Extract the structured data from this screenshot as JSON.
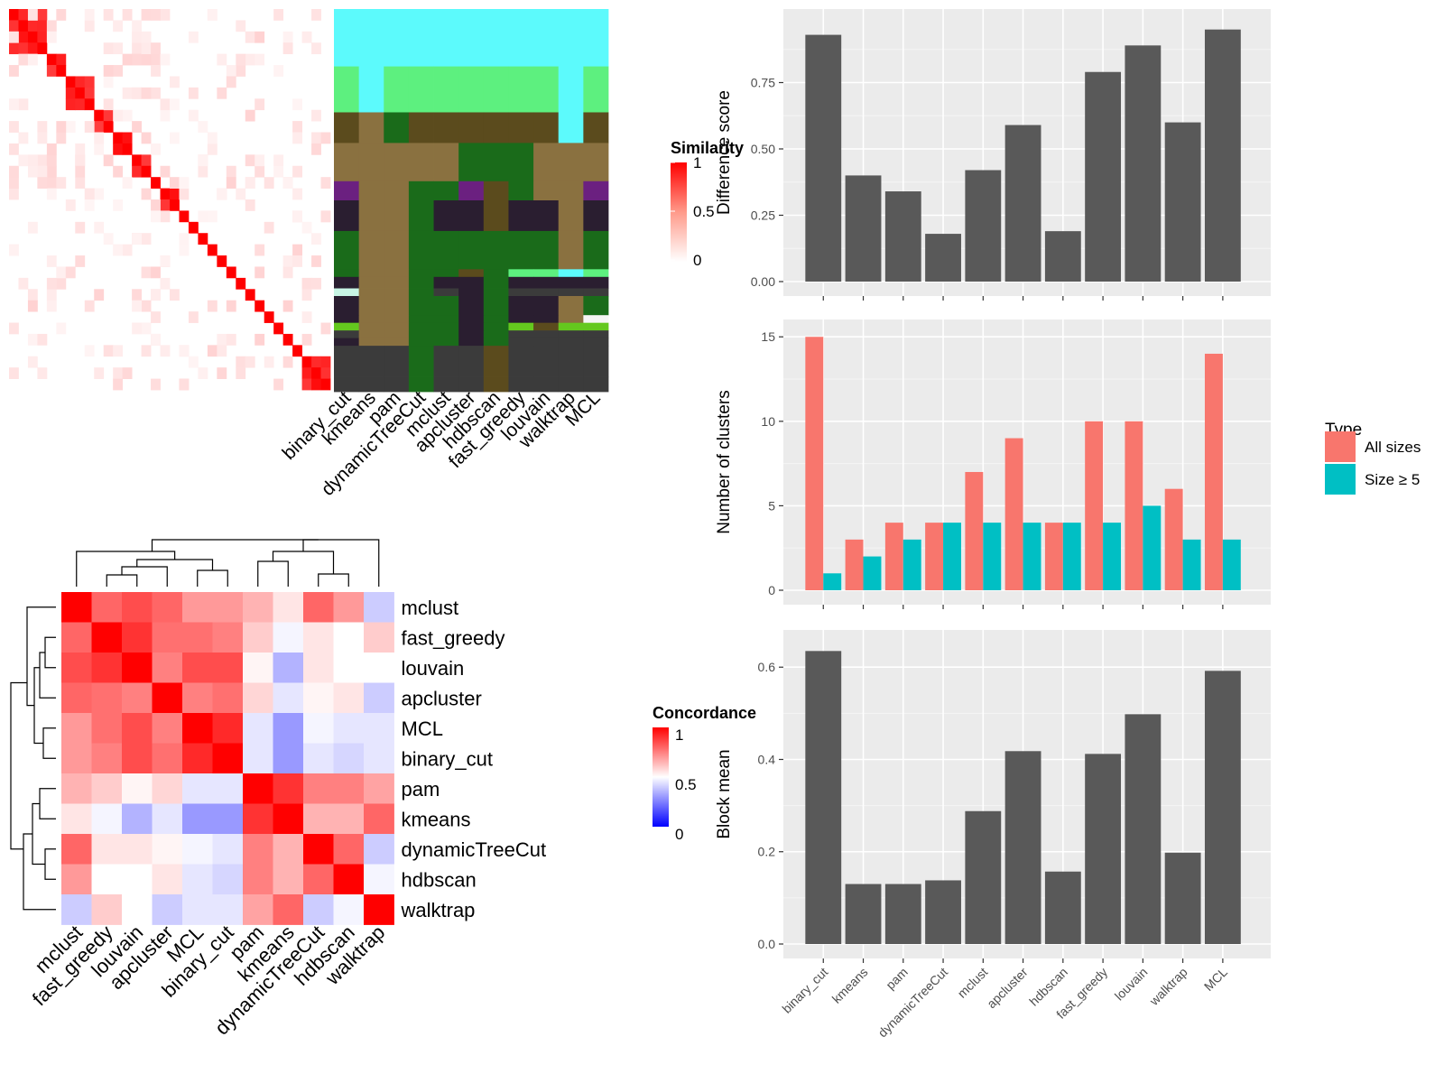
{
  "methods": [
    "binary_cut",
    "kmeans",
    "pam",
    "dynamicTreeCut",
    "mclust",
    "apcluster",
    "hdbscan",
    "fast_greedy",
    "louvain",
    "walktrap",
    "MCL"
  ],
  "similarity": {
    "legend_title": "Similarity",
    "ticks": [
      "1",
      "0.5",
      "0"
    ]
  },
  "cluster_colors": [
    "#5cfafc",
    "#5df07f",
    "#5b4b1d",
    "#8a7140",
    "#1a6b1a",
    "#6b2080",
    "#2a1e30",
    "#f5f5f5",
    "#c8f5e4",
    "#3b3b3b",
    "#64c81e"
  ],
  "concordance": {
    "legend_title": "Concordance",
    "ticks": [
      "1",
      "0.5",
      "0"
    ],
    "order": [
      "mclust",
      "fast_greedy",
      "louvain",
      "apcluster",
      "MCL",
      "binary_cut",
      "pam",
      "kmeans",
      "dynamicTreeCut",
      "hdbscan",
      "walktrap"
    ],
    "matrix": [
      [
        1.0,
        0.8,
        0.85,
        0.8,
        0.7,
        0.7,
        0.65,
        0.55,
        0.8,
        0.7,
        0.4
      ],
      [
        0.8,
        1.0,
        0.9,
        0.78,
        0.78,
        0.75,
        0.6,
        0.48,
        0.55,
        0.5,
        0.6
      ],
      [
        0.85,
        0.9,
        1.0,
        0.75,
        0.85,
        0.85,
        0.52,
        0.35,
        0.55,
        0.5,
        0.5
      ],
      [
        0.8,
        0.78,
        0.75,
        1.0,
        0.75,
        0.78,
        0.58,
        0.45,
        0.52,
        0.55,
        0.4
      ],
      [
        0.7,
        0.78,
        0.85,
        0.75,
        1.0,
        0.92,
        0.45,
        0.3,
        0.48,
        0.45,
        0.45
      ],
      [
        0.7,
        0.75,
        0.85,
        0.78,
        0.92,
        1.0,
        0.45,
        0.3,
        0.45,
        0.42,
        0.45
      ],
      [
        0.65,
        0.6,
        0.52,
        0.58,
        0.45,
        0.45,
        1.0,
        0.9,
        0.75,
        0.75,
        0.68
      ],
      [
        0.55,
        0.48,
        0.35,
        0.45,
        0.3,
        0.3,
        0.9,
        1.0,
        0.65,
        0.65,
        0.8
      ],
      [
        0.8,
        0.55,
        0.55,
        0.52,
        0.48,
        0.45,
        0.75,
        0.65,
        1.0,
        0.8,
        0.4
      ],
      [
        0.7,
        0.5,
        0.5,
        0.55,
        0.45,
        0.42,
        0.75,
        0.65,
        0.8,
        1.0,
        0.48
      ],
      [
        0.4,
        0.6,
        0.5,
        0.4,
        0.45,
        0.45,
        0.68,
        0.8,
        0.4,
        0.48,
        1.0
      ]
    ]
  },
  "chart_data": [
    {
      "type": "bar",
      "categories": [
        "binary_cut",
        "kmeans",
        "pam",
        "dynamicTreeCut",
        "mclust",
        "apcluster",
        "hdbscan",
        "fast_greedy",
        "louvain",
        "walktrap",
        "MCL"
      ],
      "values": [
        0.93,
        0.4,
        0.34,
        0.18,
        0.42,
        0.59,
        0.19,
        0.79,
        0.89,
        0.6,
        0.95
      ],
      "ylabel": "Difference score",
      "ylim": [
        0,
        1.0
      ],
      "yticks": [
        "0.00",
        "0.25",
        "0.50",
        "0.75"
      ],
      "color": "#595959"
    },
    {
      "type": "bar",
      "categories": [
        "binary_cut",
        "kmeans",
        "pam",
        "dynamicTreeCut",
        "mclust",
        "apcluster",
        "hdbscan",
        "fast_greedy",
        "louvain",
        "walktrap",
        "MCL"
      ],
      "ylabel": "Number of clusters",
      "ylim": [
        0,
        15.6
      ],
      "yticks": [
        "0",
        "5",
        "10",
        "15"
      ],
      "legend": {
        "title": "Type",
        "position": "right"
      },
      "series": [
        {
          "name": "All sizes",
          "values": [
            15,
            3,
            4,
            4,
            7,
            9,
            4,
            10,
            10,
            6,
            14
          ],
          "color": "#f8766d"
        },
        {
          "name": "Size ≥ 5",
          "values": [
            1,
            2,
            3,
            4,
            4,
            4,
            4,
            4,
            5,
            3,
            3
          ],
          "color": "#00bfc4"
        }
      ]
    },
    {
      "type": "bar",
      "categories": [
        "binary_cut",
        "kmeans",
        "pam",
        "dynamicTreeCut",
        "mclust",
        "apcluster",
        "hdbscan",
        "fast_greedy",
        "louvain",
        "walktrap",
        "MCL"
      ],
      "values": [
        0.635,
        0.13,
        0.13,
        0.138,
        0.288,
        0.418,
        0.157,
        0.412,
        0.498,
        0.198,
        0.592
      ],
      "ylabel": "Block mean",
      "ylim": [
        0,
        0.665
      ],
      "yticks": [
        "0.0",
        "0.2",
        "0.4",
        "0.6"
      ],
      "color": "#595959"
    }
  ]
}
